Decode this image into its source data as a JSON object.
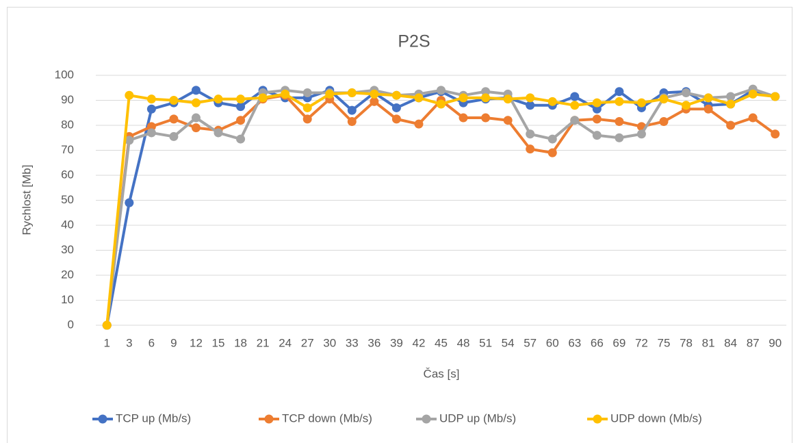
{
  "chart_data": {
    "type": "line",
    "title": "P2S",
    "x_label": "Čas [s]",
    "y_label": "Rychlost [Mb]",
    "categories": [
      "1",
      "3",
      "6",
      "9",
      "12",
      "15",
      "18",
      "21",
      "24",
      "27",
      "30",
      "33",
      "36",
      "39",
      "42",
      "45",
      "48",
      "51",
      "54",
      "57",
      "60",
      "63",
      "66",
      "69",
      "72",
      "75",
      "78",
      "81",
      "84",
      "87",
      "90"
    ],
    "series": [
      {
        "name": "TCP up (Mb/s)",
        "color": "#4472c4",
        "values": [
          0,
          49,
          86.5,
          89,
          94,
          89,
          87.5,
          94,
          91,
          91,
          94,
          86,
          93,
          87,
          91,
          93.5,
          89,
          90.5,
          91,
          88,
          88,
          91.5,
          86.5,
          93.5,
          87,
          93,
          93.5,
          88,
          88.5,
          94,
          91.5
        ]
      },
      {
        "name": "TCP down (Mb/s)",
        "color": "#ed7d31",
        "values": [
          0,
          75.5,
          79.5,
          82.5,
          79,
          78,
          82,
          90.5,
          92,
          82.5,
          90.5,
          81.5,
          89.5,
          82.5,
          80.5,
          90,
          83,
          83,
          82,
          70.5,
          69,
          82,
          82.5,
          81.5,
          79.5,
          81.5,
          86.5,
          86.5,
          80,
          83,
          76.5
        ]
      },
      {
        "name": "UDP up (Mb/s)",
        "color": "#a5a5a5",
        "values": [
          0,
          74,
          77,
          75.5,
          83,
          77,
          74.5,
          93,
          94,
          93,
          93,
          93,
          94,
          92,
          92.5,
          94,
          92,
          93.5,
          92.5,
          76.5,
          74.5,
          82,
          76,
          75,
          76.5,
          91,
          93,
          91,
          91.5,
          94.5,
          91.5
        ]
      },
      {
        "name": "UDP down (Mb/s)",
        "color": "#ffc000",
        "values": [
          0,
          92,
          90.5,
          90,
          89,
          90.5,
          90.5,
          91,
          92.5,
          87,
          92.5,
          93,
          92.5,
          92,
          91,
          88.5,
          91,
          91,
          90.5,
          91,
          89.5,
          88,
          89,
          89.5,
          89,
          90.5,
          88,
          91,
          88.5,
          92.5,
          91.5
        ]
      }
    ],
    "ylim": [
      0,
      100
    ],
    "yticks": [
      0,
      10,
      20,
      30,
      40,
      50,
      60,
      70,
      80,
      90,
      100
    ],
    "grid": true,
    "legend": "bottom"
  }
}
